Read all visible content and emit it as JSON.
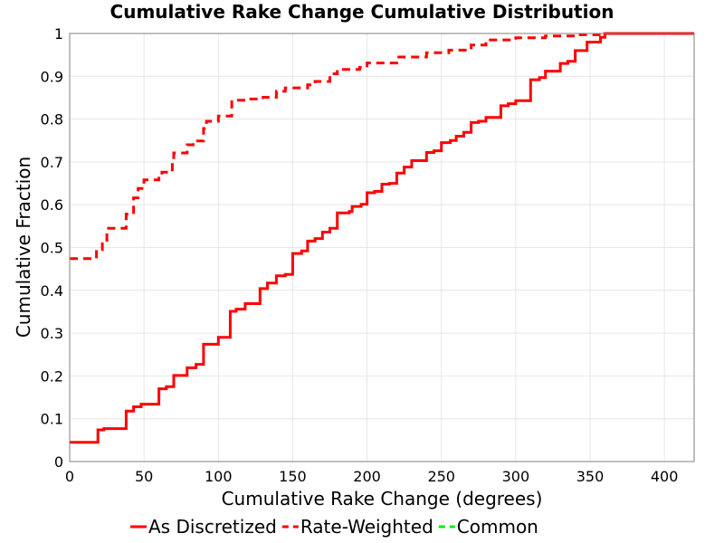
{
  "chart_data": {
    "type": "line",
    "title": "Cumulative Rake Change Cumulative Distribution",
    "xlabel": "Cumulative Rake Change (degrees)",
    "ylabel": "Cumulative Fraction",
    "xlim": [
      0,
      420
    ],
    "ylim": [
      0,
      1
    ],
    "x_ticks": [
      0,
      50,
      100,
      150,
      200,
      250,
      300,
      350,
      400
    ],
    "y_ticks": [
      0,
      0.1,
      0.2,
      0.3,
      0.4,
      0.5,
      0.6,
      0.7,
      0.8,
      0.9,
      1
    ],
    "y_tick_labels": [
      "0",
      "0.1",
      "0.2",
      "0.3",
      "0.4",
      "0.5",
      "0.6",
      "0.7",
      "0.8",
      "0.9",
      "1"
    ],
    "grid": true,
    "legend_position": "bottom",
    "series": [
      {
        "name": "As Discretized",
        "color": "#ff0000",
        "style": "solid",
        "step": true,
        "points": [
          [
            0,
            0.045
          ],
          [
            19,
            0.045
          ],
          [
            19,
            0.074
          ],
          [
            23,
            0.074
          ],
          [
            23,
            0.077
          ],
          [
            38,
            0.077
          ],
          [
            38,
            0.118
          ],
          [
            43,
            0.118
          ],
          [
            43,
            0.128
          ],
          [
            48,
            0.128
          ],
          [
            48,
            0.134
          ],
          [
            60,
            0.134
          ],
          [
            60,
            0.17
          ],
          [
            65,
            0.17
          ],
          [
            65,
            0.175
          ],
          [
            70,
            0.175
          ],
          [
            70,
            0.201
          ],
          [
            79,
            0.201
          ],
          [
            79,
            0.219
          ],
          [
            85,
            0.219
          ],
          [
            85,
            0.227
          ],
          [
            90,
            0.227
          ],
          [
            90,
            0.274
          ],
          [
            100,
            0.274
          ],
          [
            100,
            0.29
          ],
          [
            108,
            0.29
          ],
          [
            108,
            0.351
          ],
          [
            112,
            0.351
          ],
          [
            112,
            0.356
          ],
          [
            118,
            0.356
          ],
          [
            118,
            0.369
          ],
          [
            128,
            0.369
          ],
          [
            128,
            0.404
          ],
          [
            133,
            0.404
          ],
          [
            133,
            0.417
          ],
          [
            139,
            0.417
          ],
          [
            139,
            0.434
          ],
          [
            145,
            0.434
          ],
          [
            145,
            0.437
          ],
          [
            150,
            0.437
          ],
          [
            150,
            0.486
          ],
          [
            156,
            0.486
          ],
          [
            156,
            0.492
          ],
          [
            160,
            0.492
          ],
          [
            160,
            0.515
          ],
          [
            165,
            0.515
          ],
          [
            165,
            0.521
          ],
          [
            170,
            0.521
          ],
          [
            170,
            0.536
          ],
          [
            175,
            0.536
          ],
          [
            175,
            0.545
          ],
          [
            180,
            0.545
          ],
          [
            180,
            0.581
          ],
          [
            188,
            0.581
          ],
          [
            188,
            0.584
          ],
          [
            190,
            0.584
          ],
          [
            190,
            0.596
          ],
          [
            196,
            0.596
          ],
          [
            196,
            0.601
          ],
          [
            200,
            0.601
          ],
          [
            200,
            0.628
          ],
          [
            205,
            0.628
          ],
          [
            205,
            0.631
          ],
          [
            210,
            0.631
          ],
          [
            210,
            0.648
          ],
          [
            215,
            0.648
          ],
          [
            215,
            0.65
          ],
          [
            220,
            0.65
          ],
          [
            220,
            0.674
          ],
          [
            225,
            0.674
          ],
          [
            225,
            0.688
          ],
          [
            230,
            0.688
          ],
          [
            230,
            0.703
          ],
          [
            240,
            0.703
          ],
          [
            240,
            0.722
          ],
          [
            245,
            0.722
          ],
          [
            245,
            0.726
          ],
          [
            250,
            0.726
          ],
          [
            250,
            0.745
          ],
          [
            256,
            0.745
          ],
          [
            256,
            0.75
          ],
          [
            260,
            0.75
          ],
          [
            260,
            0.76
          ],
          [
            265,
            0.76
          ],
          [
            265,
            0.769
          ],
          [
            270,
            0.769
          ],
          [
            270,
            0.792
          ],
          [
            275,
            0.792
          ],
          [
            275,
            0.795
          ],
          [
            280,
            0.795
          ],
          [
            280,
            0.804
          ],
          [
            290,
            0.804
          ],
          [
            290,
            0.831
          ],
          [
            295,
            0.831
          ],
          [
            295,
            0.836
          ],
          [
            300,
            0.836
          ],
          [
            300,
            0.843
          ],
          [
            310,
            0.843
          ],
          [
            310,
            0.892
          ],
          [
            316,
            0.892
          ],
          [
            316,
            0.897
          ],
          [
            320,
            0.897
          ],
          [
            320,
            0.912
          ],
          [
            330,
            0.912
          ],
          [
            330,
            0.93
          ],
          [
            335,
            0.93
          ],
          [
            335,
            0.935
          ],
          [
            340,
            0.935
          ],
          [
            340,
            0.96
          ],
          [
            348,
            0.96
          ],
          [
            348,
            0.98
          ],
          [
            357,
            0.98
          ],
          [
            357,
            0.991
          ],
          [
            360,
            0.991
          ],
          [
            360,
            1.0
          ],
          [
            420,
            1.0
          ]
        ]
      },
      {
        "name": "Rate-Weighted",
        "color": "#ff0000",
        "style": "dashed",
        "step": true,
        "points": [
          [
            0,
            0.474
          ],
          [
            18,
            0.474
          ],
          [
            18,
            0.495
          ],
          [
            22,
            0.495
          ],
          [
            22,
            0.517
          ],
          [
            25,
            0.517
          ],
          [
            25,
            0.545
          ],
          [
            38,
            0.545
          ],
          [
            38,
            0.578
          ],
          [
            43,
            0.578
          ],
          [
            43,
            0.616
          ],
          [
            46,
            0.616
          ],
          [
            46,
            0.638
          ],
          [
            50,
            0.638
          ],
          [
            50,
            0.658
          ],
          [
            60,
            0.658
          ],
          [
            60,
            0.67
          ],
          [
            62,
            0.67
          ],
          [
            62,
            0.676
          ],
          [
            69,
            0.676
          ],
          [
            69,
            0.694
          ],
          [
            70,
            0.694
          ],
          [
            70,
            0.721
          ],
          [
            79,
            0.721
          ],
          [
            79,
            0.74
          ],
          [
            83,
            0.74
          ],
          [
            83,
            0.749
          ],
          [
            90,
            0.749
          ],
          [
            90,
            0.778
          ],
          [
            92,
            0.778
          ],
          [
            92,
            0.795
          ],
          [
            100,
            0.795
          ],
          [
            100,
            0.807
          ],
          [
            109,
            0.807
          ],
          [
            109,
            0.844
          ],
          [
            120,
            0.844
          ],
          [
            120,
            0.847
          ],
          [
            130,
            0.847
          ],
          [
            130,
            0.851
          ],
          [
            139,
            0.851
          ],
          [
            139,
            0.865
          ],
          [
            145,
            0.865
          ],
          [
            145,
            0.873
          ],
          [
            160,
            0.873
          ],
          [
            160,
            0.88
          ],
          [
            165,
            0.88
          ],
          [
            165,
            0.888
          ],
          [
            175,
            0.888
          ],
          [
            175,
            0.906
          ],
          [
            180,
            0.906
          ],
          [
            180,
            0.916
          ],
          [
            195,
            0.916
          ],
          [
            195,
            0.921
          ],
          [
            200,
            0.921
          ],
          [
            200,
            0.931
          ],
          [
            220,
            0.931
          ],
          [
            220,
            0.945
          ],
          [
            240,
            0.945
          ],
          [
            240,
            0.955
          ],
          [
            255,
            0.955
          ],
          [
            255,
            0.961
          ],
          [
            270,
            0.961
          ],
          [
            270,
            0.973
          ],
          [
            280,
            0.973
          ],
          [
            280,
            0.985
          ],
          [
            300,
            0.985
          ],
          [
            300,
            0.99
          ],
          [
            320,
            0.99
          ],
          [
            320,
            0.994
          ],
          [
            340,
            0.994
          ],
          [
            340,
            0.997
          ],
          [
            360,
            0.997
          ],
          [
            360,
            1.0
          ],
          [
            420,
            1.0
          ]
        ]
      },
      {
        "name": "Common",
        "color": "#00ee00",
        "style": "dashed",
        "step": true,
        "points": []
      }
    ]
  }
}
